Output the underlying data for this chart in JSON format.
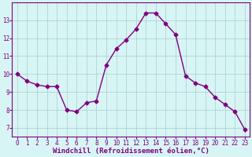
{
  "x": [
    0,
    1,
    2,
    3,
    4,
    5,
    6,
    7,
    8,
    9,
    10,
    11,
    12,
    13,
    14,
    15,
    16,
    17,
    18,
    19,
    20,
    21,
    22,
    23
  ],
  "y": [
    10.0,
    9.6,
    9.4,
    9.3,
    9.3,
    8.0,
    7.9,
    8.4,
    8.5,
    10.5,
    11.4,
    11.9,
    12.5,
    13.4,
    13.4,
    12.8,
    12.2,
    9.9,
    9.5,
    9.3,
    8.7,
    8.3,
    7.9,
    6.9
  ],
  "line_color": "#800080",
  "marker": "D",
  "markersize": 2.5,
  "linewidth": 1.0,
  "bg_color": "#d8f5f5",
  "grid_color": "#aacccc",
  "xlabel": "Windchill (Refroidissement éolien,°C)",
  "xlabel_color": "#800080",
  "tick_color": "#800080",
  "ylim": [
    6.5,
    14.0
  ],
  "xlim": [
    -0.5,
    23.5
  ],
  "yticks": [
    7,
    8,
    9,
    10,
    11,
    12,
    13
  ],
  "xticks": [
    0,
    1,
    2,
    3,
    4,
    5,
    6,
    7,
    8,
    9,
    10,
    11,
    12,
    13,
    14,
    15,
    16,
    17,
    18,
    19,
    20,
    21,
    22,
    23
  ],
  "tick_fontsize": 5.5,
  "xlabel_fontsize": 6.5,
  "spine_color": "#800080",
  "title_color": "#800080"
}
